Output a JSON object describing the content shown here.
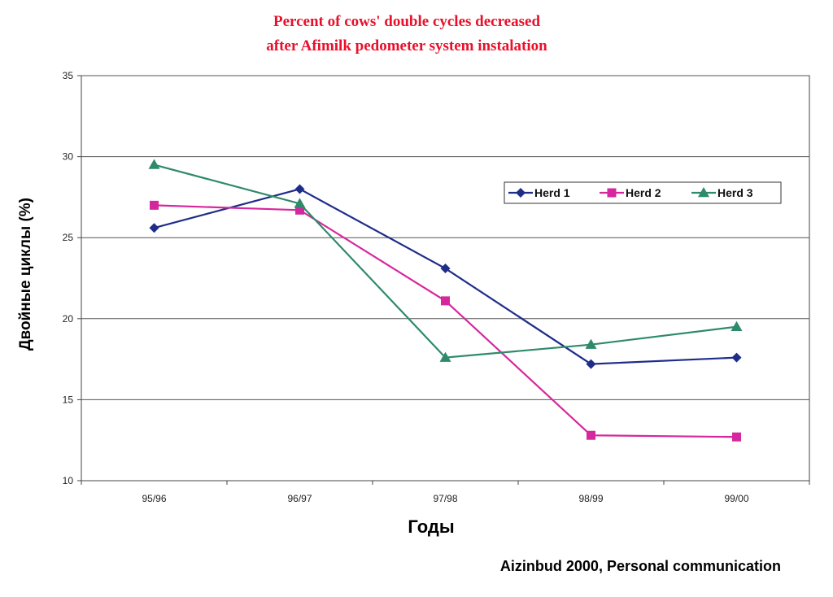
{
  "chart_data": {
    "type": "line",
    "title": [
      "Percent of cows' double cycles decreased",
      "after Afimilk pedometer system instalation"
    ],
    "xlabel": "Годы",
    "ylabel": "Двойные циклы (%)",
    "categories": [
      "95/96",
      "96/97",
      "97/98",
      "98/99",
      "99/00"
    ],
    "ylim": [
      10,
      35
    ],
    "yticks": [
      "10",
      "15",
      "20",
      "25",
      "30",
      "35"
    ],
    "grid": "horizontal",
    "legend_position": "top-right",
    "series": [
      {
        "name": "Herd 1",
        "color": "#1f2d8a",
        "marker": "diamond",
        "values": [
          25.6,
          28.0,
          23.1,
          17.2,
          17.6
        ]
      },
      {
        "name": "Herd 2",
        "color": "#d6289e",
        "marker": "square",
        "values": [
          27.0,
          26.7,
          21.1,
          12.8,
          12.7
        ]
      },
      {
        "name": "Herd 3",
        "color": "#2e8a6a",
        "marker": "triangle",
        "values": [
          29.5,
          27.1,
          17.6,
          18.4,
          19.5
        ]
      }
    ],
    "source_note": "Aizinbud 2000, Personal communication"
  }
}
